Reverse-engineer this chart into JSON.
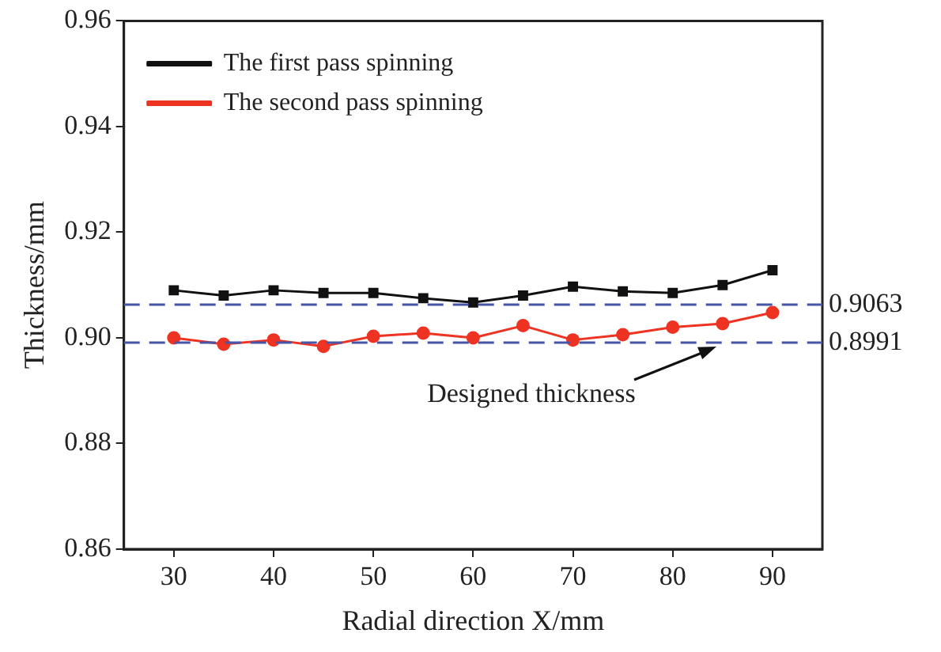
{
  "chart_data": {
    "type": "line",
    "xlabel": "Radial direction X/mm",
    "ylabel": "Thickness/mm",
    "x": [
      30,
      35,
      40,
      45,
      50,
      55,
      60,
      65,
      70,
      75,
      80,
      85,
      90
    ],
    "series": [
      {
        "name": "The first pass spinning",
        "color": "#111111",
        "marker": "square",
        "values": [
          0.909,
          0.908,
          0.909,
          0.9085,
          0.9085,
          0.9075,
          0.9067,
          0.908,
          0.9097,
          0.9088,
          0.9085,
          0.91,
          0.9128
        ]
      },
      {
        "name": "The second pass spinning",
        "color": "#ee3322",
        "marker": "circle",
        "values": [
          0.9,
          0.8988,
          0.8996,
          0.8984,
          0.9003,
          0.9009,
          0.9,
          0.9023,
          0.8996,
          0.9006,
          0.902,
          0.9027,
          0.9048
        ]
      }
    ],
    "xlim": [
      25,
      95
    ],
    "xticks": [
      30,
      40,
      50,
      60,
      70,
      80,
      90
    ],
    "ylim": [
      0.86,
      0.96
    ],
    "yticks": [
      0.86,
      0.88,
      {
        "value": 0.9,
        "label": "0.90"
      },
      0.92,
      0.94,
      0.96
    ],
    "ref_lines": [
      {
        "axis": "y",
        "value": 0.9063,
        "label": "0.9063",
        "color": "#4455aa",
        "line_style": "dashed"
      },
      {
        "axis": "y",
        "value": 0.8991,
        "label": "0.8991",
        "color": "#4455aa",
        "line_style": "dashed"
      }
    ],
    "annotations": [
      "Designed thickness"
    ],
    "grid": false,
    "legend": "top left",
    "line_style": "solid"
  }
}
